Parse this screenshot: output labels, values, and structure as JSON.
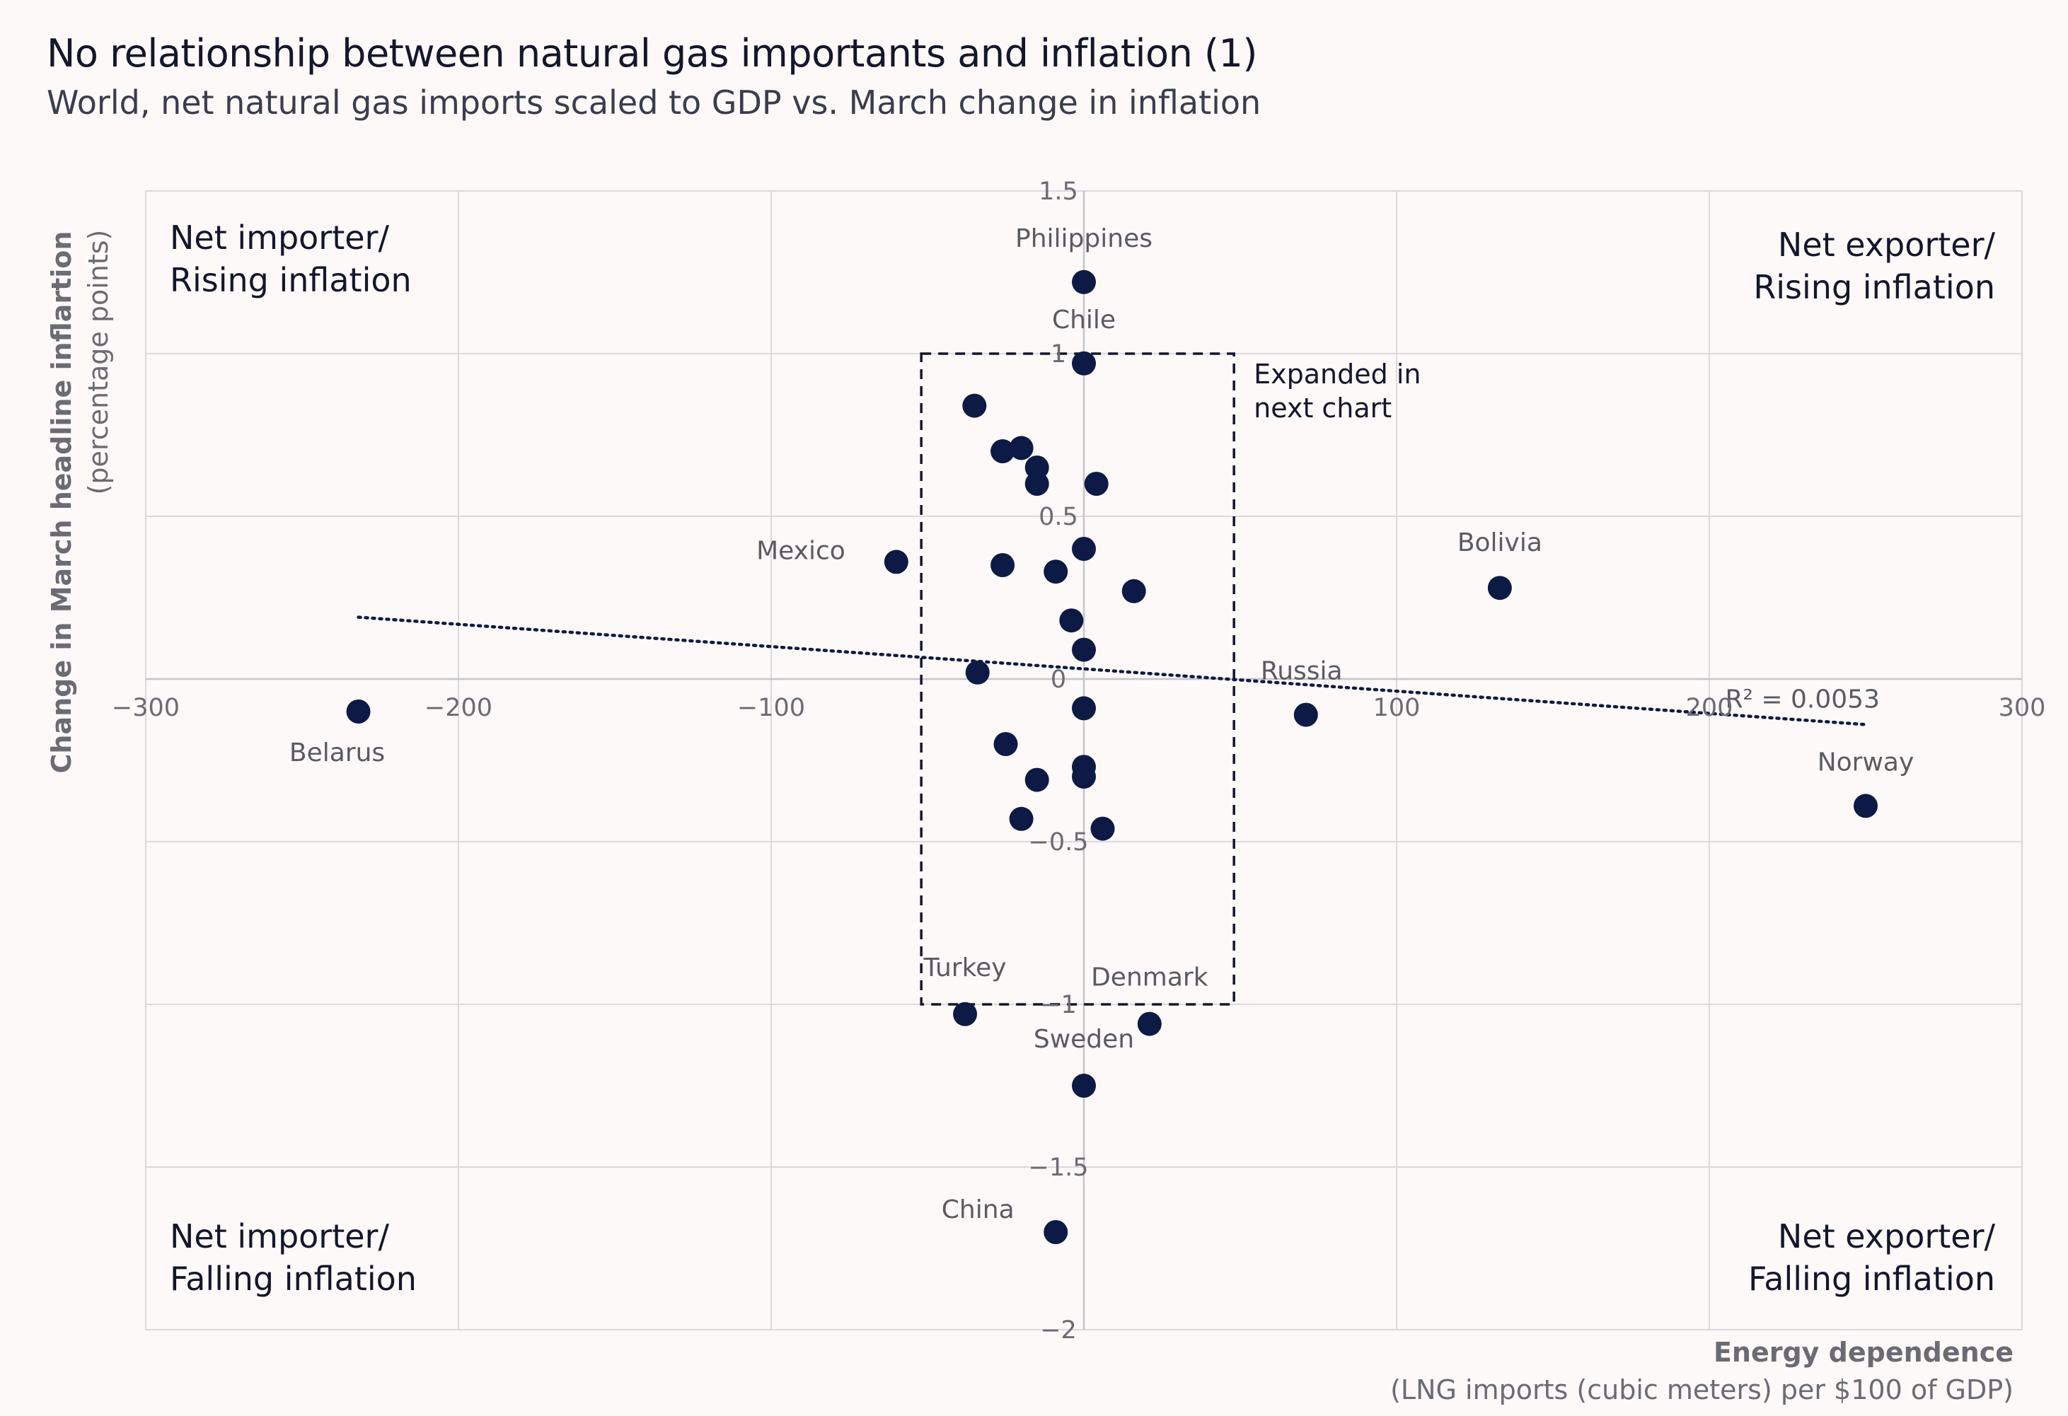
{
  "title": "No relationship between natural gas importants and inflation (1)",
  "subtitle": "World, net natural gas imports scaled to GDP vs. March change in inflation",
  "colors": {
    "background": "#fcf9f8",
    "point": "#0d1a45",
    "grid": "#d9d9de",
    "text": "#14172b",
    "muted": "#6b6b73"
  },
  "chart_data": {
    "type": "scatter",
    "title": "No relationship between natural gas importants and inflation (1)",
    "xlabel": "Energy dependence",
    "xlabel_sub": "(LNG imports (cubic meters) per $100 of GDP)",
    "ylabel": "Change in March headline inflartion",
    "ylabel_sub": "(percentage points)",
    "xlim": [
      -300,
      300
    ],
    "ylim": [
      -2,
      1.5
    ],
    "xticks": [
      -300,
      -200,
      -100,
      0,
      100,
      200,
      300
    ],
    "xtick_labels": [
      "−300",
      "−200",
      "−100",
      "0",
      "100",
      "200",
      "300"
    ],
    "yticks": [
      1.5,
      1,
      0.5,
      0,
      -0.5,
      -1,
      -1.5,
      -2
    ],
    "ytick_labels": [
      "1.5",
      "1",
      "0.5",
      "0",
      "−0.5",
      "−1",
      "−1.5",
      "−2"
    ],
    "grid": true,
    "points": [
      {
        "x": 0,
        "y": 1.22,
        "label": "Philippines"
      },
      {
        "x": 0,
        "y": 0.97,
        "label": "Chile"
      },
      {
        "x": -60,
        "y": 0.36,
        "label": "Mexico"
      },
      {
        "x": 133,
        "y": 0.28,
        "label": "Bolivia"
      },
      {
        "x": 71,
        "y": -0.11,
        "label": "Russia"
      },
      {
        "x": -232,
        "y": -0.1,
        "label": "Belarus"
      },
      {
        "x": 250,
        "y": -0.39,
        "label": "Norway"
      },
      {
        "x": -38,
        "y": -1.03,
        "label": "Turkey"
      },
      {
        "x": 21,
        "y": -1.06,
        "label": "Denmark"
      },
      {
        "x": 0,
        "y": -1.25,
        "label": "Sweden"
      },
      {
        "x": -9,
        "y": -1.7,
        "label": "China"
      },
      {
        "x": -35,
        "y": 0.84,
        "label": ""
      },
      {
        "x": -26,
        "y": 0.7,
        "label": ""
      },
      {
        "x": -20,
        "y": 0.71,
        "label": ""
      },
      {
        "x": -15,
        "y": 0.65,
        "label": ""
      },
      {
        "x": -15,
        "y": 0.6,
        "label": ""
      },
      {
        "x": 4,
        "y": 0.6,
        "label": ""
      },
      {
        "x": 0,
        "y": 0.4,
        "label": ""
      },
      {
        "x": -26,
        "y": 0.35,
        "label": ""
      },
      {
        "x": -9,
        "y": 0.33,
        "label": ""
      },
      {
        "x": 16,
        "y": 0.27,
        "label": ""
      },
      {
        "x": -4,
        "y": 0.18,
        "label": ""
      },
      {
        "x": 0,
        "y": 0.09,
        "label": ""
      },
      {
        "x": -34,
        "y": 0.02,
        "label": ""
      },
      {
        "x": 0,
        "y": -0.09,
        "label": ""
      },
      {
        "x": -25,
        "y": -0.2,
        "label": ""
      },
      {
        "x": 0,
        "y": -0.27,
        "label": ""
      },
      {
        "x": -15,
        "y": -0.31,
        "label": ""
      },
      {
        "x": 0,
        "y": -0.3,
        "label": ""
      },
      {
        "x": -20,
        "y": -0.43,
        "label": ""
      },
      {
        "x": 6,
        "y": -0.46,
        "label": ""
      }
    ],
    "trendline": {
      "x1": -232,
      "y1": 0.19,
      "x2": 250,
      "y2": -0.14,
      "style": "dotted"
    },
    "r_squared_label": "R² = 0.0053",
    "highlight_box": {
      "x_min": -52,
      "x_max": 48,
      "y_min": -1,
      "y_max": 1,
      "style": "dashed",
      "label_lines": [
        "Expanded in",
        "next chart"
      ]
    },
    "quadrant_labels": {
      "top_left": [
        "Net importer/",
        "Rising inflation"
      ],
      "top_right": [
        "Net exporter/",
        "Rising inflation"
      ],
      "bottom_left": [
        "Net importer/",
        "Falling inflation"
      ],
      "bottom_right": [
        "Net exporter/",
        "Falling inflation"
      ]
    }
  }
}
